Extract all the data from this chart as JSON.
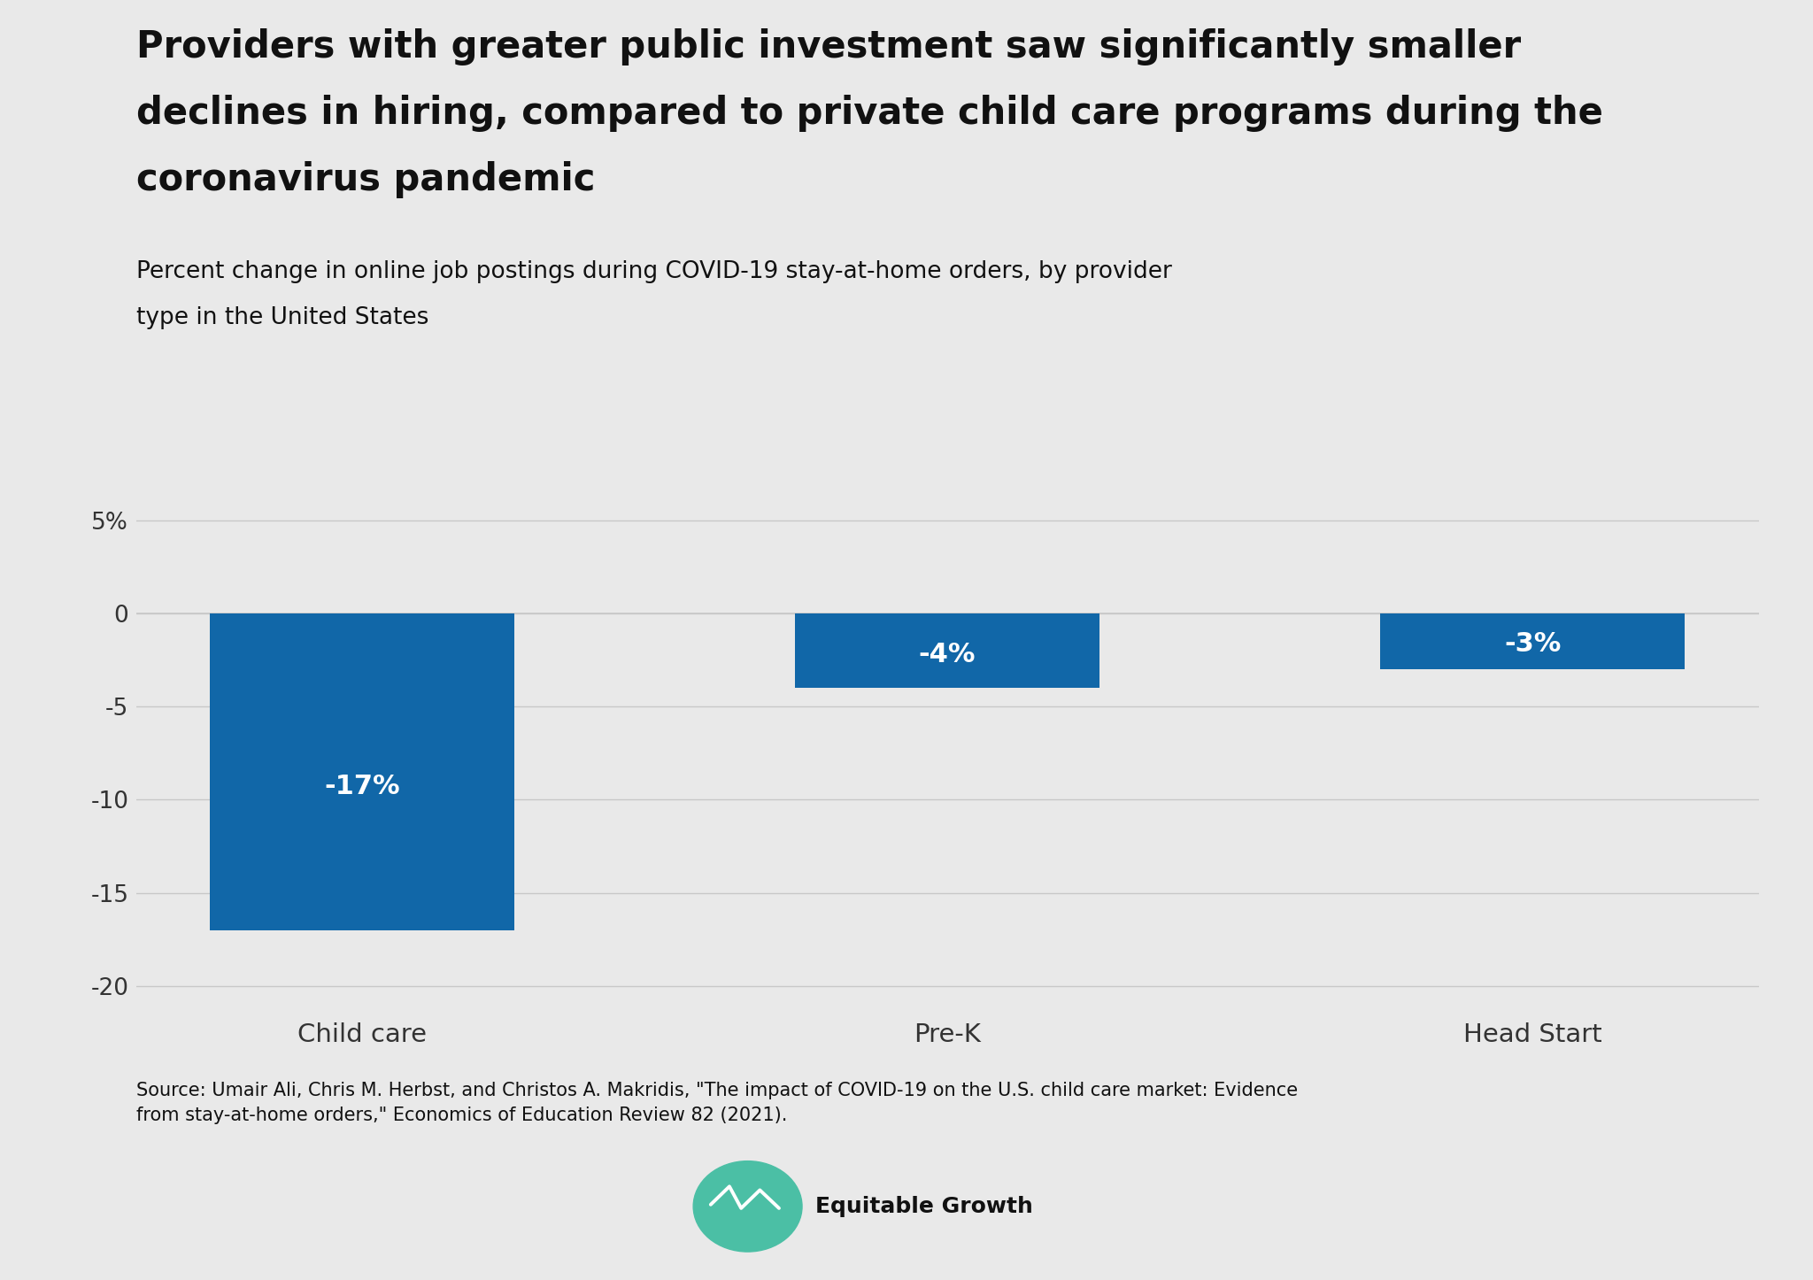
{
  "title_line1": "Providers with greater public investment saw significantly smaller",
  "title_line2": "declines in hiring, compared to private child care programs during the",
  "title_line3": "coronavirus pandemic",
  "subtitle_line1": "Percent change in online job postings during COVID-19 stay-at-home orders, by provider",
  "subtitle_line2": "type in the United States",
  "categories": [
    "Child care",
    "Pre-K",
    "Head Start"
  ],
  "values": [
    -17,
    -4,
    -3
  ],
  "bar_labels": [
    "-17%",
    "-4%",
    "-3%"
  ],
  "bar_color": "#1167a8",
  "background_color": "#e9e9e9",
  "plot_bg_color": "#e9e9e9",
  "title_fontsize": 30,
  "subtitle_fontsize": 19,
  "tick_fontsize": 19,
  "bar_label_fontsize": 22,
  "cat_label_fontsize": 21,
  "ylim": [
    -21,
    7.5
  ],
  "yticks": [
    5,
    0,
    -5,
    -10,
    -15,
    -20
  ],
  "ytick_labels": [
    "5%",
    "0",
    "-5",
    "-10",
    "-15",
    "-20"
  ],
  "source_text": "Source: Umair Ali, Chris M. Herbst, and Christos A. Makridis, \"The impact of COVID-19 on the U.S. child care market: Evidence\nfrom stay-at-home orders,\" Economics of Education Review 82 (2021).",
  "source_fontsize": 15,
  "grid_color": "#c8c8c8",
  "text_color": "#111111",
  "axis_label_color": "#333333",
  "bar_width": 0.52
}
